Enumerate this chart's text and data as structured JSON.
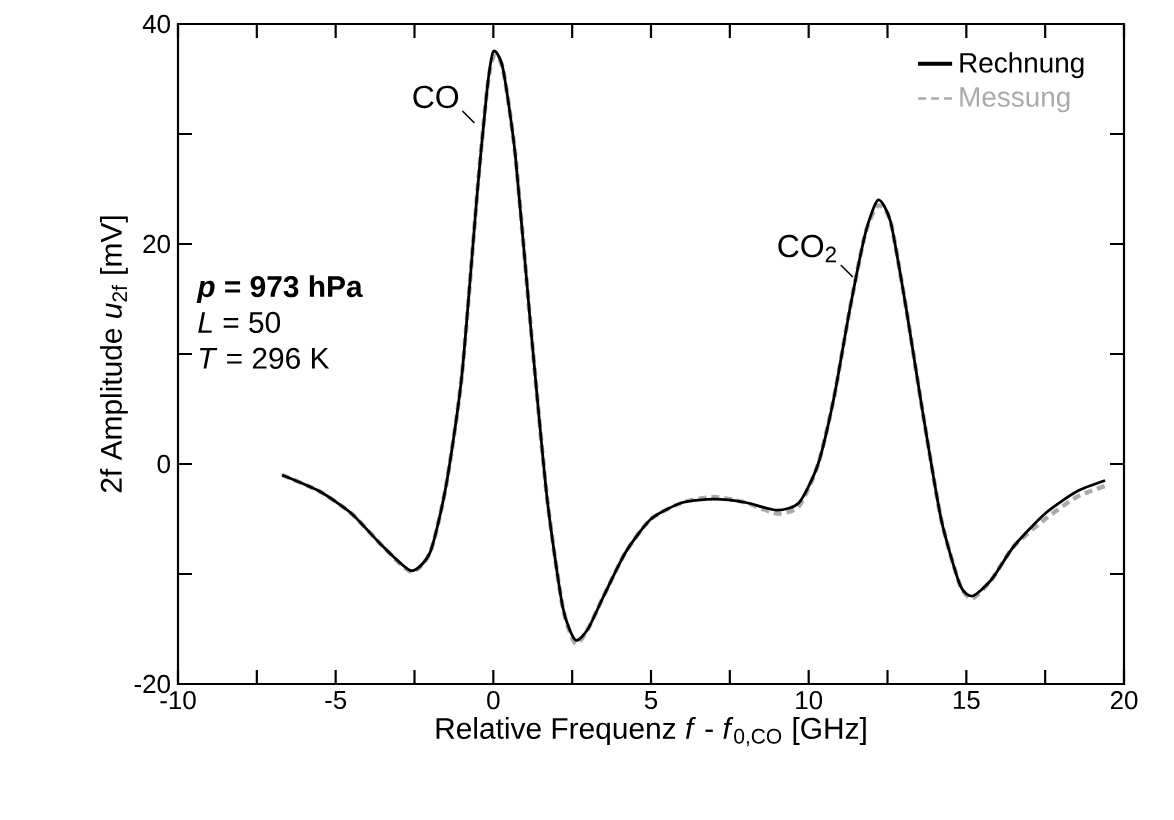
{
  "chart_data": {
    "type": "line",
    "xlabel": "Relative Frequenz *f* - *f*$_{0,CO}$  [GHz]",
    "ylabel": "2f Amplitude *u*$_{2f}$  [mV]",
    "xlim": [
      -10,
      20
    ],
    "ylim": [
      -20,
      40
    ],
    "xticks": [
      -10,
      {
        "value": -7.5,
        "label": null
      },
      -5,
      {
        "value": -2.5,
        "label": null
      },
      0,
      {
        "value": 2.5,
        "label": null
      },
      5,
      {
        "value": 7.5,
        "label": null
      },
      10,
      {
        "value": 12.5,
        "label": null
      },
      15,
      {
        "value": 17.5,
        "label": null
      },
      20
    ],
    "yticks": [
      -20,
      {
        "value": -10,
        "label": null
      },
      0,
      {
        "value": 10,
        "label": null
      },
      20,
      {
        "value": 30,
        "label": null
      },
      40
    ],
    "legend": "top right",
    "grid": false,
    "series": [
      {
        "name": "Rechnung",
        "color": "#000000",
        "line_style": "solid",
        "x": [
          -6.7,
          -5.5,
          -4.5,
          -3.5,
          -2.6,
          -2.0,
          -1.5,
          -1.0,
          -0.5,
          -0.2,
          0,
          0.3,
          0.7,
          1.2,
          1.7,
          2.2,
          2.6,
          3.0,
          3.5,
          4.2,
          5,
          6,
          7,
          8,
          9,
          9.7,
          10.3,
          10.8,
          11.3,
          11.8,
          12.2,
          12.6,
          13.1,
          13.6,
          14.2,
          14.8,
          15.2,
          15.8,
          16.5,
          17.5,
          18.5,
          19.4
        ],
        "values": [
          -1,
          -2.5,
          -4.5,
          -7.5,
          -9.7,
          -8,
          -2,
          8,
          25,
          34,
          37.5,
          36,
          28,
          12,
          -3,
          -13,
          -16,
          -15,
          -12,
          -8,
          -5,
          -3.5,
          -3.2,
          -3.5,
          -4.2,
          -3.5,
          0,
          6,
          14,
          21,
          24,
          22,
          14,
          5,
          -5,
          -11,
          -12,
          -10.5,
          -7.5,
          -4.5,
          -2.5,
          -1.5
        ]
      },
      {
        "name": "Messung",
        "color": "#aaaaaa",
        "line_style": "dashed",
        "x": [
          -6.7,
          -5.5,
          -4.5,
          -3.5,
          -2.6,
          -2.0,
          -1.5,
          -1.0,
          -0.5,
          -0.2,
          0,
          0.3,
          0.7,
          1.2,
          1.7,
          2.2,
          2.6,
          3.0,
          3.5,
          4.2,
          5,
          6,
          7,
          8,
          9,
          9.7,
          10.3,
          10.8,
          11.3,
          11.8,
          12.2,
          12.6,
          13.1,
          13.6,
          14.2,
          14.8,
          15.2,
          15.8,
          16.5,
          17.5,
          18.5,
          19.4
        ],
        "values": [
          -1,
          -2.5,
          -4.5,
          -7.5,
          -9.8,
          -8,
          -2,
          8,
          25,
          34,
          37,
          36,
          28,
          12,
          -3,
          -13,
          -16.3,
          -15,
          -12,
          -8,
          -5,
          -3.5,
          -3,
          -3.5,
          -4.5,
          -3.8,
          0,
          6,
          14,
          21,
          23.5,
          22,
          14,
          5,
          -5,
          -11,
          -12.2,
          -10.5,
          -7.5,
          -5,
          -3,
          -2
        ]
      }
    ],
    "annotations": [
      {
        "text": "CO",
        "x": -0.6,
        "y": 31
      },
      {
        "text": "CO$_{2}$",
        "x": 11.4,
        "y": 17
      },
      "*p* = 973 hPa",
      "*L* = 50",
      "*T* = 296 K"
    ]
  }
}
